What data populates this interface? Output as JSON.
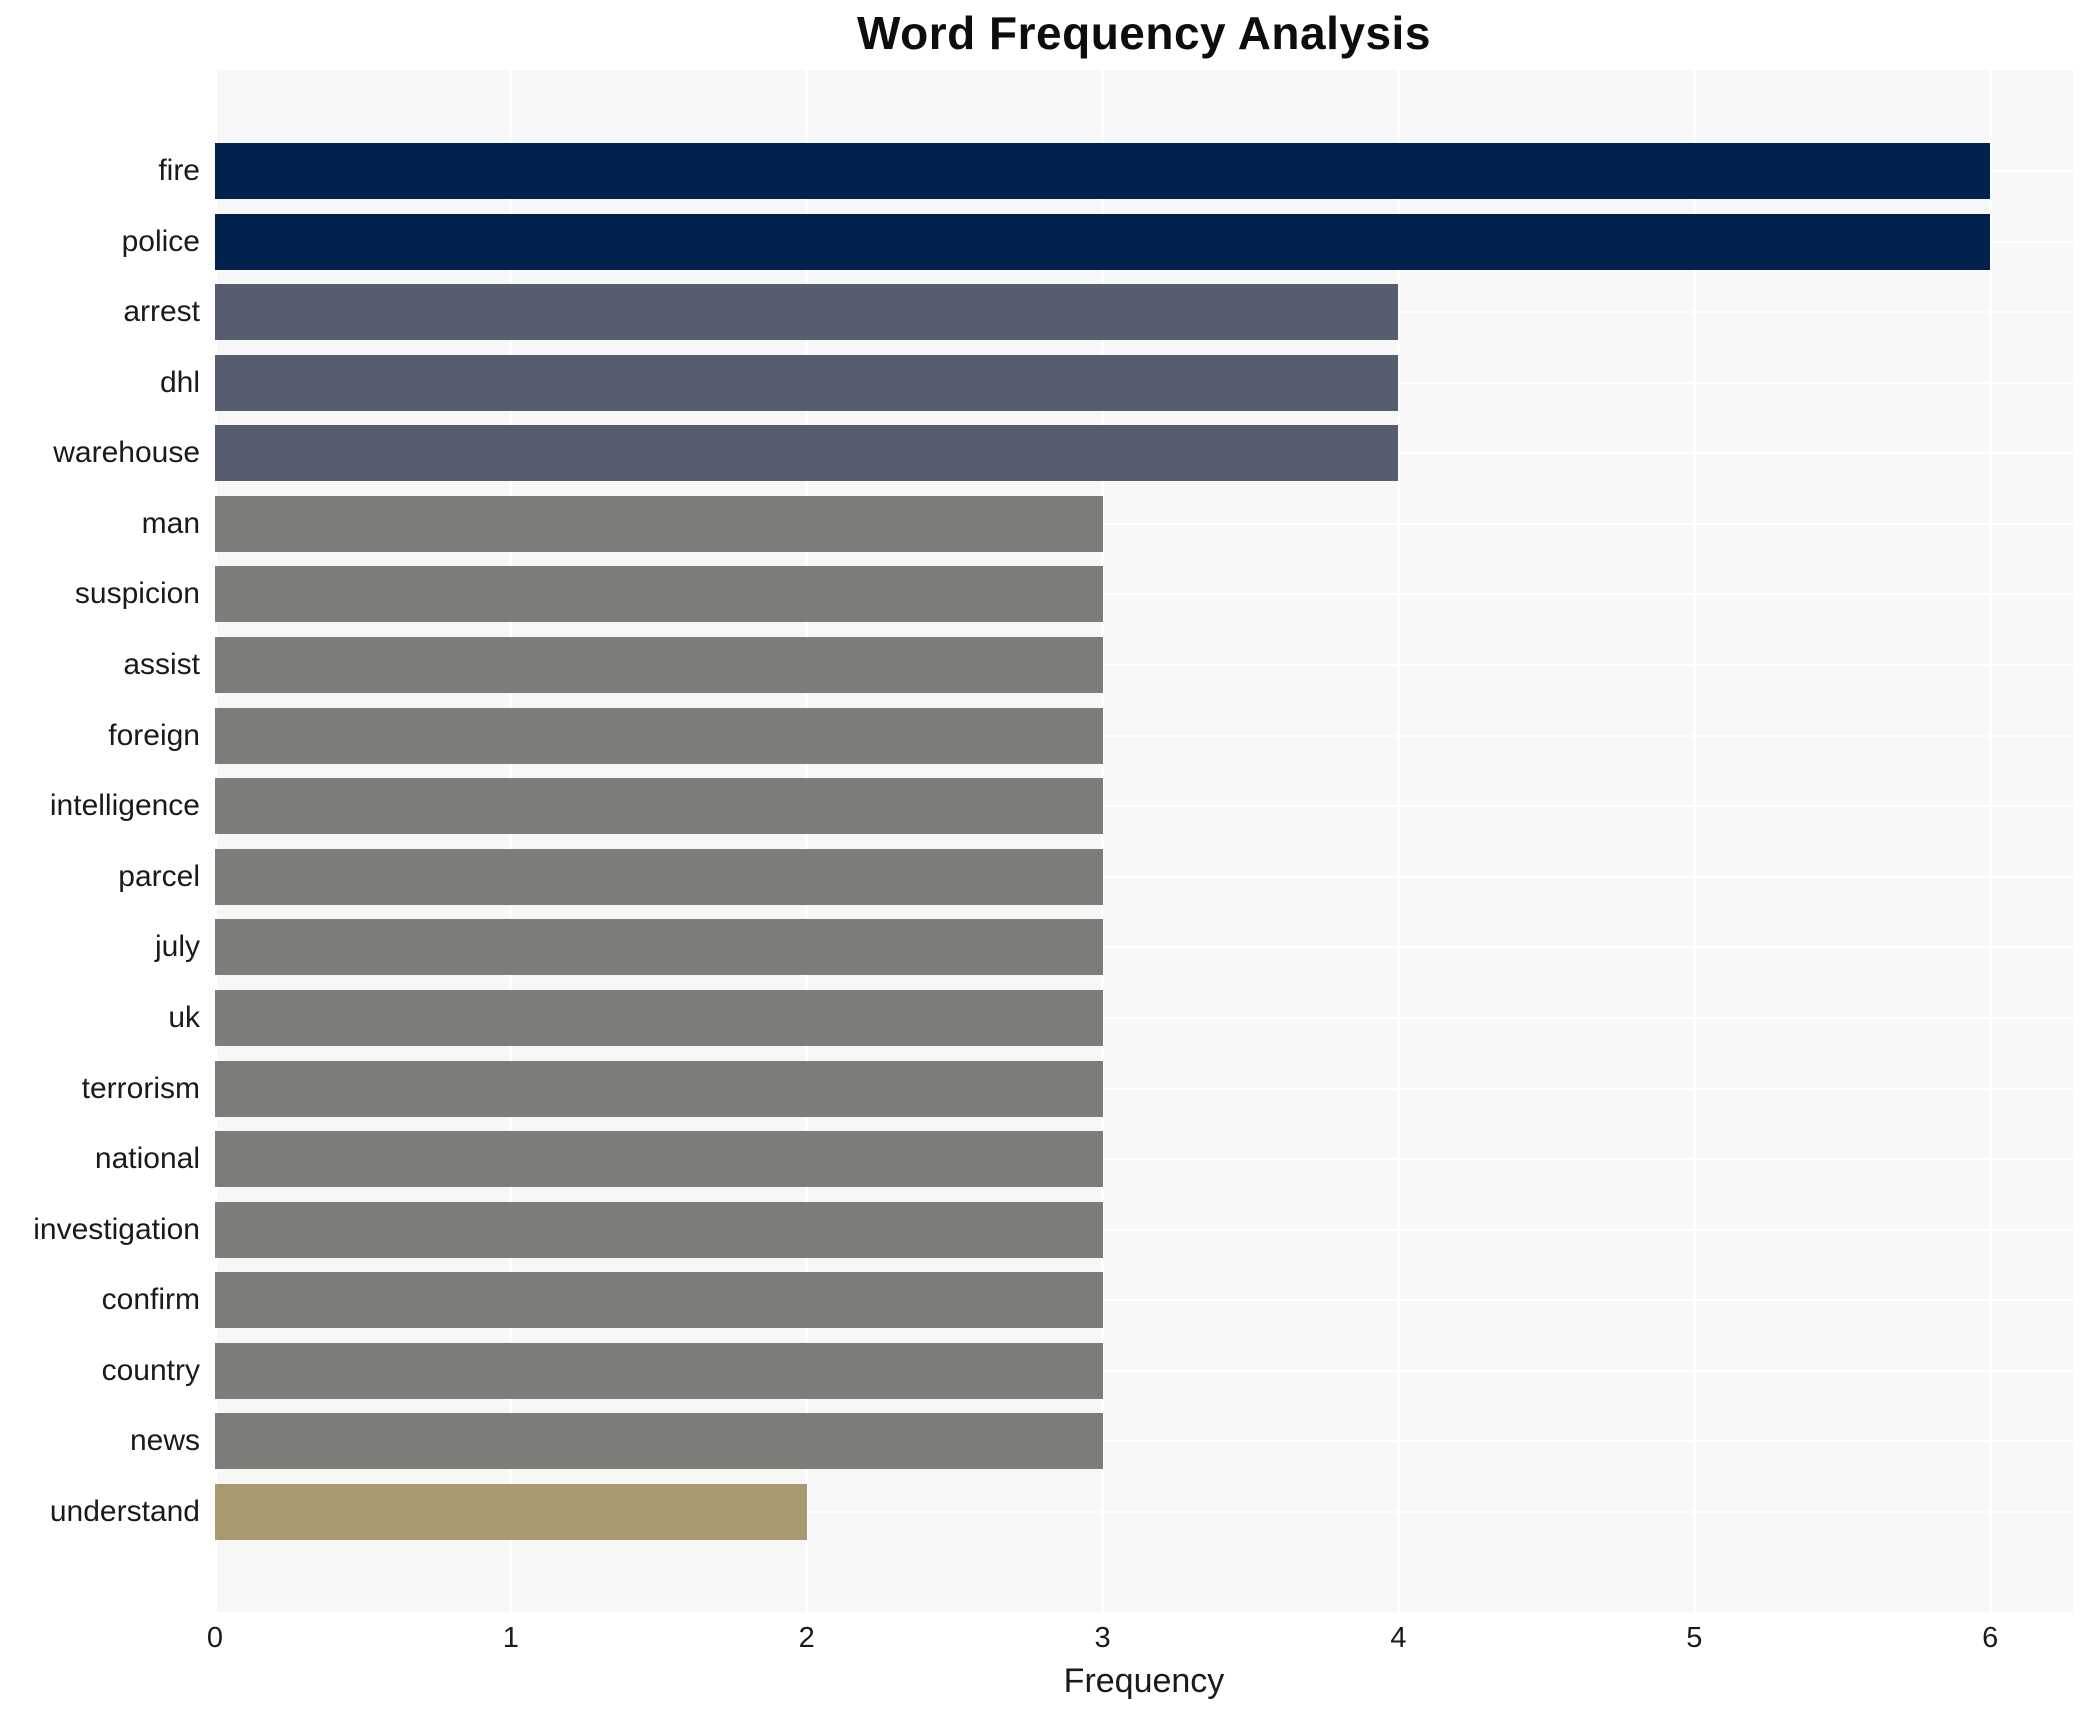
{
  "chart_data": {
    "type": "bar",
    "orientation": "horizontal",
    "title": "Word Frequency Analysis",
    "xlabel": "Frequency",
    "ylabel": "",
    "categories": [
      "fire",
      "police",
      "arrest",
      "dhl",
      "warehouse",
      "man",
      "suspicion",
      "assist",
      "foreign",
      "intelligence",
      "parcel",
      "july",
      "uk",
      "terrorism",
      "national",
      "investigation",
      "confirm",
      "country",
      "news",
      "understand"
    ],
    "values": [
      6,
      6,
      4,
      4,
      4,
      3,
      3,
      3,
      3,
      3,
      3,
      3,
      3,
      3,
      3,
      3,
      3,
      3,
      3,
      2
    ],
    "xticks": [
      0,
      1,
      2,
      3,
      4,
      5,
      6
    ],
    "xlim": [
      0,
      6.28
    ],
    "grid": true,
    "legend": "none",
    "colors": {
      "plot_background": "#f7f7f7",
      "figure_background": "#ffffff",
      "grid_color": "#ffffff",
      "text_color": "#1a1a1a",
      "value_color_map": {
        "6": "#02224e",
        "4": "#565d6e",
        "3": "#7d7c78",
        "2": "#a89a6e"
      }
    }
  }
}
